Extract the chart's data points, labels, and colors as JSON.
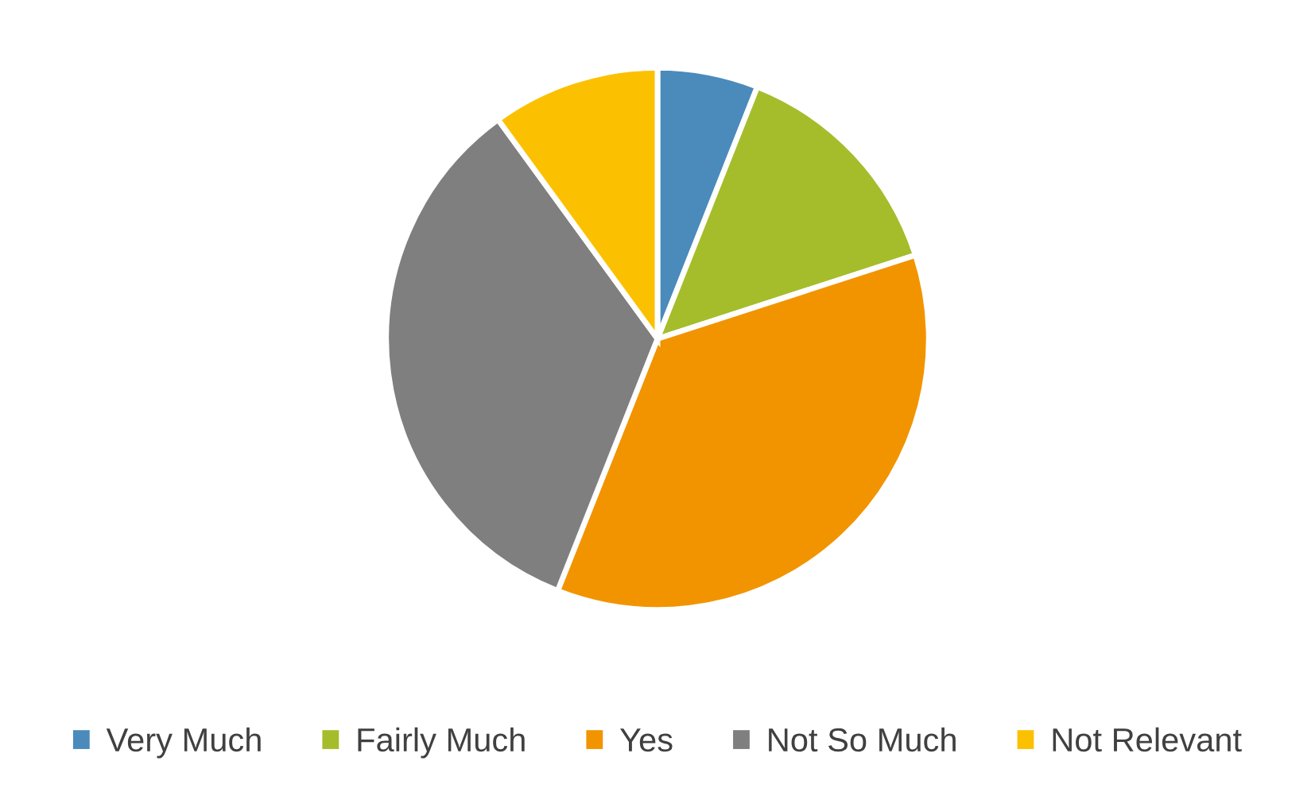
{
  "chart_data": {
    "type": "pie",
    "categories": [
      "Very Much",
      "Fairly Much",
      "Yes",
      "Not So Much",
      "Not Relevant"
    ],
    "values": [
      6,
      14,
      36,
      34,
      10
    ],
    "colors": [
      "#4a8bbb",
      "#a5bd2b",
      "#f29400",
      "#7f7f7f",
      "#fbc100"
    ],
    "legend": "bottom"
  }
}
